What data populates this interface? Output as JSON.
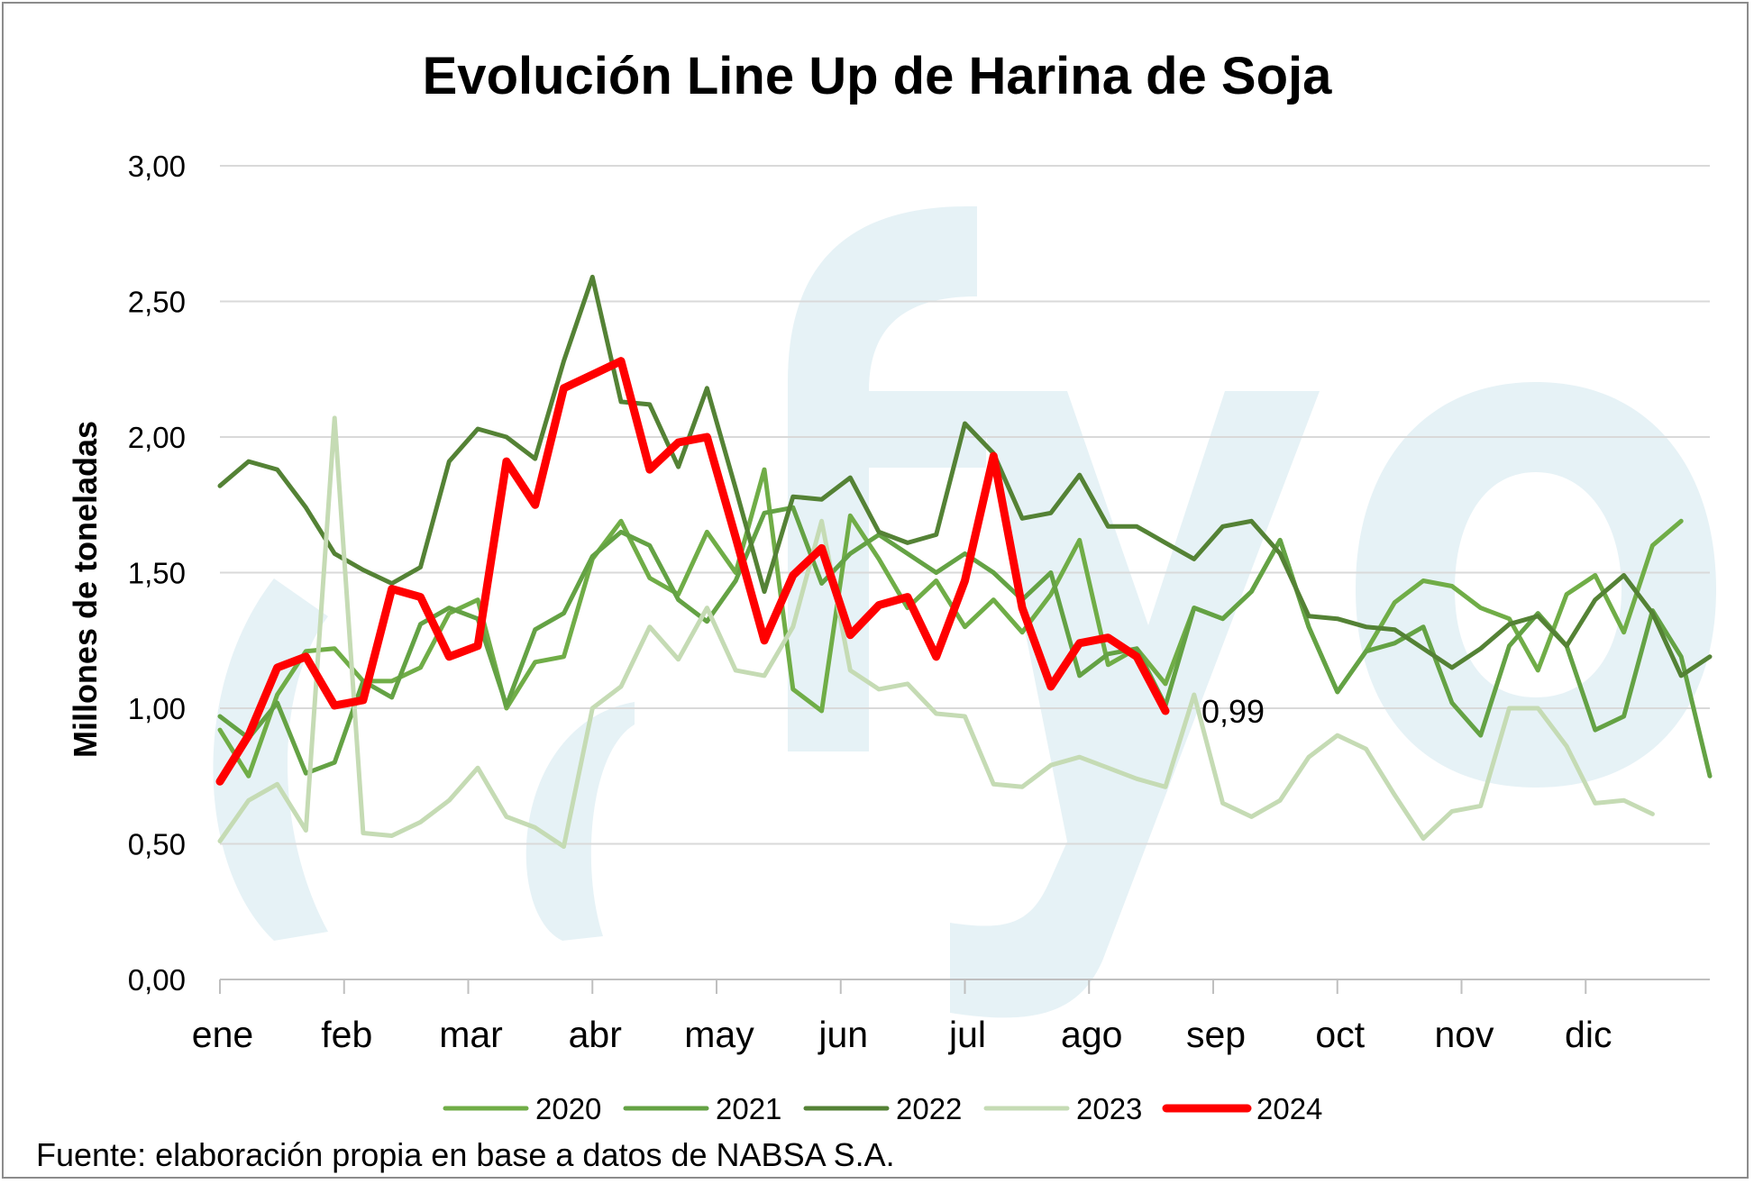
{
  "chart_data": {
    "type": "line",
    "title": "Evolución Line Up de Harina de Soja",
    "ylabel": "Millones de toneladas",
    "xlabel": "",
    "ylim": [
      0,
      3
    ],
    "yticks": [
      "0,00",
      "0,50",
      "1,00",
      "1,50",
      "2,00",
      "2,50",
      "3,00"
    ],
    "ytick_values": [
      0,
      0.5,
      1,
      1.5,
      2,
      2.5,
      3
    ],
    "months": [
      "ene",
      "feb",
      "mar",
      "abr",
      "may",
      "jun",
      "jul",
      "ago",
      "sep",
      "oct",
      "nov",
      "dic"
    ],
    "week_count": 53,
    "grid": "horizontal",
    "legend_position": "bottom",
    "watermark": "fyo",
    "source": "Fuente: elaboración propia en base a datos de NABSA S.A.",
    "last_label": {
      "series": "2024",
      "text": "0,99"
    },
    "series": [
      {
        "name": "2020",
        "color": "#70ad47",
        "width": 5,
        "values": [
          0.92,
          0.75,
          1.05,
          1.21,
          1.22,
          1.1,
          1.1,
          1.15,
          1.35,
          1.4,
          1.0,
          1.17,
          1.19,
          1.55,
          1.69,
          1.48,
          1.42,
          1.65,
          1.5,
          1.88,
          1.07,
          0.99,
          1.71,
          1.55,
          1.37,
          1.47,
          1.3,
          1.4,
          1.28,
          1.42,
          1.62,
          1.16,
          1.22,
          1.09,
          1.37,
          1.33,
          1.43,
          1.62,
          1.3,
          1.06,
          1.21,
          1.39,
          1.47,
          1.45,
          1.37,
          1.33,
          1.14,
          1.42,
          1.49,
          1.28,
          1.6,
          1.69
        ]
      },
      {
        "name": "2021",
        "color": "#64a244",
        "width": 5,
        "values": [
          0.97,
          0.89,
          1.02,
          0.76,
          0.8,
          1.1,
          1.04,
          1.31,
          1.37,
          1.33,
          1.01,
          1.29,
          1.35,
          1.56,
          1.65,
          1.6,
          1.4,
          1.32,
          1.47,
          1.72,
          1.74,
          1.46,
          1.57,
          1.64,
          1.57,
          1.5,
          1.57,
          1.5,
          1.4,
          1.5,
          1.12,
          1.2,
          1.22,
          1.01,
          1.37,
          1.33,
          1.43,
          1.62,
          1.3,
          1.06,
          1.21,
          1.24,
          1.3,
          1.02,
          0.9,
          1.23,
          1.35,
          1.23,
          0.92,
          0.97,
          1.36,
          1.19,
          0.75
        ]
      },
      {
        "name": "2022",
        "color": "#548235",
        "width": 5,
        "values": [
          1.82,
          1.91,
          1.88,
          1.74,
          1.57,
          1.51,
          1.46,
          1.52,
          1.91,
          2.03,
          2.0,
          1.92,
          2.28,
          2.59,
          2.13,
          2.12,
          1.89,
          2.18,
          1.81,
          1.43,
          1.78,
          1.77,
          1.85,
          1.65,
          1.61,
          1.64,
          2.05,
          1.94,
          1.7,
          1.72,
          1.86,
          1.67,
          1.67,
          1.61,
          1.55,
          1.67,
          1.69,
          1.57,
          1.34,
          1.33,
          1.3,
          1.29,
          1.22,
          1.15,
          1.22,
          1.31,
          1.34,
          1.23,
          1.4,
          1.49,
          1.35,
          1.12,
          1.19
        ]
      },
      {
        "name": "2023",
        "color": "#c5dbb4",
        "width": 5,
        "values": [
          0.51,
          0.66,
          0.72,
          0.55,
          2.07,
          0.54,
          0.53,
          0.58,
          0.66,
          0.78,
          0.6,
          0.56,
          0.49,
          1.0,
          1.08,
          1.3,
          1.18,
          1.37,
          1.14,
          1.12,
          1.3,
          1.69,
          1.14,
          1.07,
          1.09,
          0.98,
          0.97,
          0.72,
          0.71,
          0.79,
          0.82,
          0.78,
          0.74,
          0.71,
          1.05,
          0.65,
          0.6,
          0.66,
          0.82,
          0.9,
          0.85,
          0.68,
          0.52,
          0.62,
          0.64,
          1.0,
          1.0,
          0.86,
          0.65,
          0.66,
          0.61
        ]
      },
      {
        "name": "2024",
        "color": "#ff0000",
        "width": 9,
        "values": [
          0.73,
          0.9,
          1.15,
          1.19,
          1.01,
          1.03,
          1.44,
          1.41,
          1.19,
          1.23,
          1.91,
          1.75,
          2.18,
          2.23,
          2.28,
          1.88,
          1.98,
          2.0,
          1.63,
          1.25,
          1.49,
          1.59,
          1.27,
          1.38,
          1.41,
          1.19,
          1.47,
          1.93,
          1.37,
          1.08,
          1.24,
          1.26,
          1.19,
          0.99
        ]
      }
    ]
  }
}
